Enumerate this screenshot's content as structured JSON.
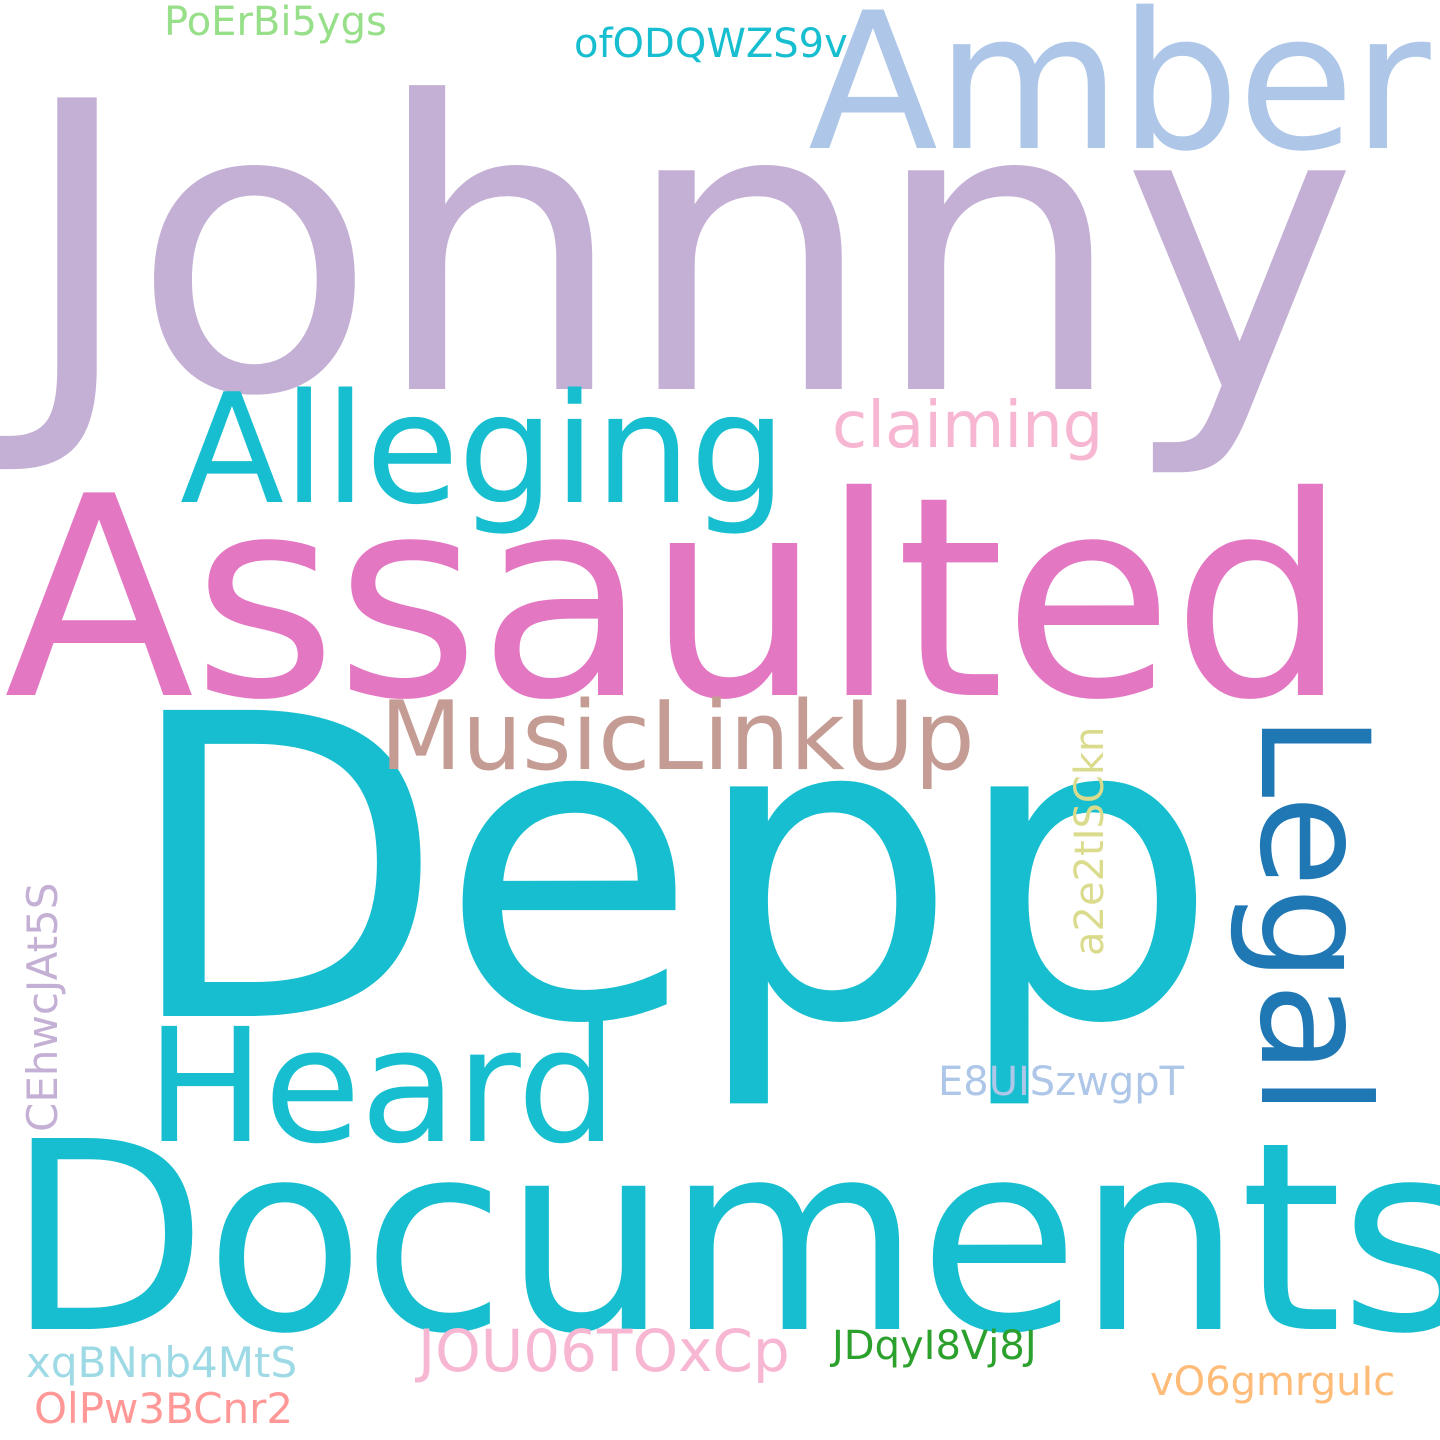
{
  "words": [
    {
      "text": "Johnny",
      "color": "#c5b0d5"
    },
    {
      "text": "Assaulted",
      "color": "#e377c2"
    },
    {
      "text": "Depp",
      "color": "#17becf"
    },
    {
      "text": "Documents",
      "color": "#17becf"
    },
    {
      "text": "Amber",
      "color": "#aec7e8"
    },
    {
      "text": "Alleging",
      "color": "#17becf"
    },
    {
      "text": "Heard",
      "color": "#17becf"
    },
    {
      "text": "Legal",
      "color": "#1f77b4"
    },
    {
      "text": "MusicLinkUp",
      "color": "#c49c94"
    },
    {
      "text": "claiming",
      "color": "#f7b6d2"
    },
    {
      "text": "PoErBi5ygs",
      "color": "#98df8a"
    },
    {
      "text": "ofODQWZS9v",
      "color": "#17becf"
    },
    {
      "text": "a2e2tISCkn",
      "color": "#dbdb8d"
    },
    {
      "text": "CEhwcJAt5S",
      "color": "#c5b0d5"
    },
    {
      "text": "E8UISzwgpT",
      "color": "#aec7e8"
    },
    {
      "text": "JOU06TOxCp",
      "color": "#f7b6d2"
    },
    {
      "text": "xqBNnb4MtS",
      "color": "#9edae5"
    },
    {
      "text": "OlPw3BCnr2",
      "color": "#ff9896"
    },
    {
      "text": "JDqyI8Vj8J",
      "color": "#2ca02c"
    },
    {
      "text": "vO6gmrguIc",
      "color": "#ffbb78"
    }
  ]
}
